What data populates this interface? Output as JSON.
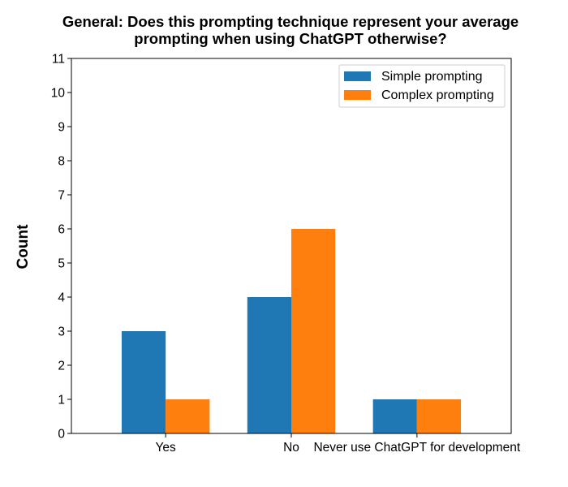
{
  "chart_data": {
    "type": "bar",
    "title_lines": [
      "General: Does this prompting technique represent your average",
      "prompting when using ChatGPT otherwise?"
    ],
    "xlabel": "",
    "ylabel": "Count",
    "categories": [
      "Yes",
      "No",
      "Never use ChatGPT for development"
    ],
    "series": [
      {
        "name": "Simple prompting",
        "values": [
          3,
          4,
          1
        ],
        "color": "#1f77b4"
      },
      {
        "name": "Complex prompting",
        "values": [
          1,
          6,
          1
        ],
        "color": "#ff7f0e"
      }
    ],
    "ylim": [
      0,
      11
    ],
    "yticks": [
      0,
      1,
      2,
      3,
      4,
      5,
      6,
      7,
      8,
      9,
      10,
      11
    ],
    "grid": false,
    "legend_position": "top-right"
  }
}
